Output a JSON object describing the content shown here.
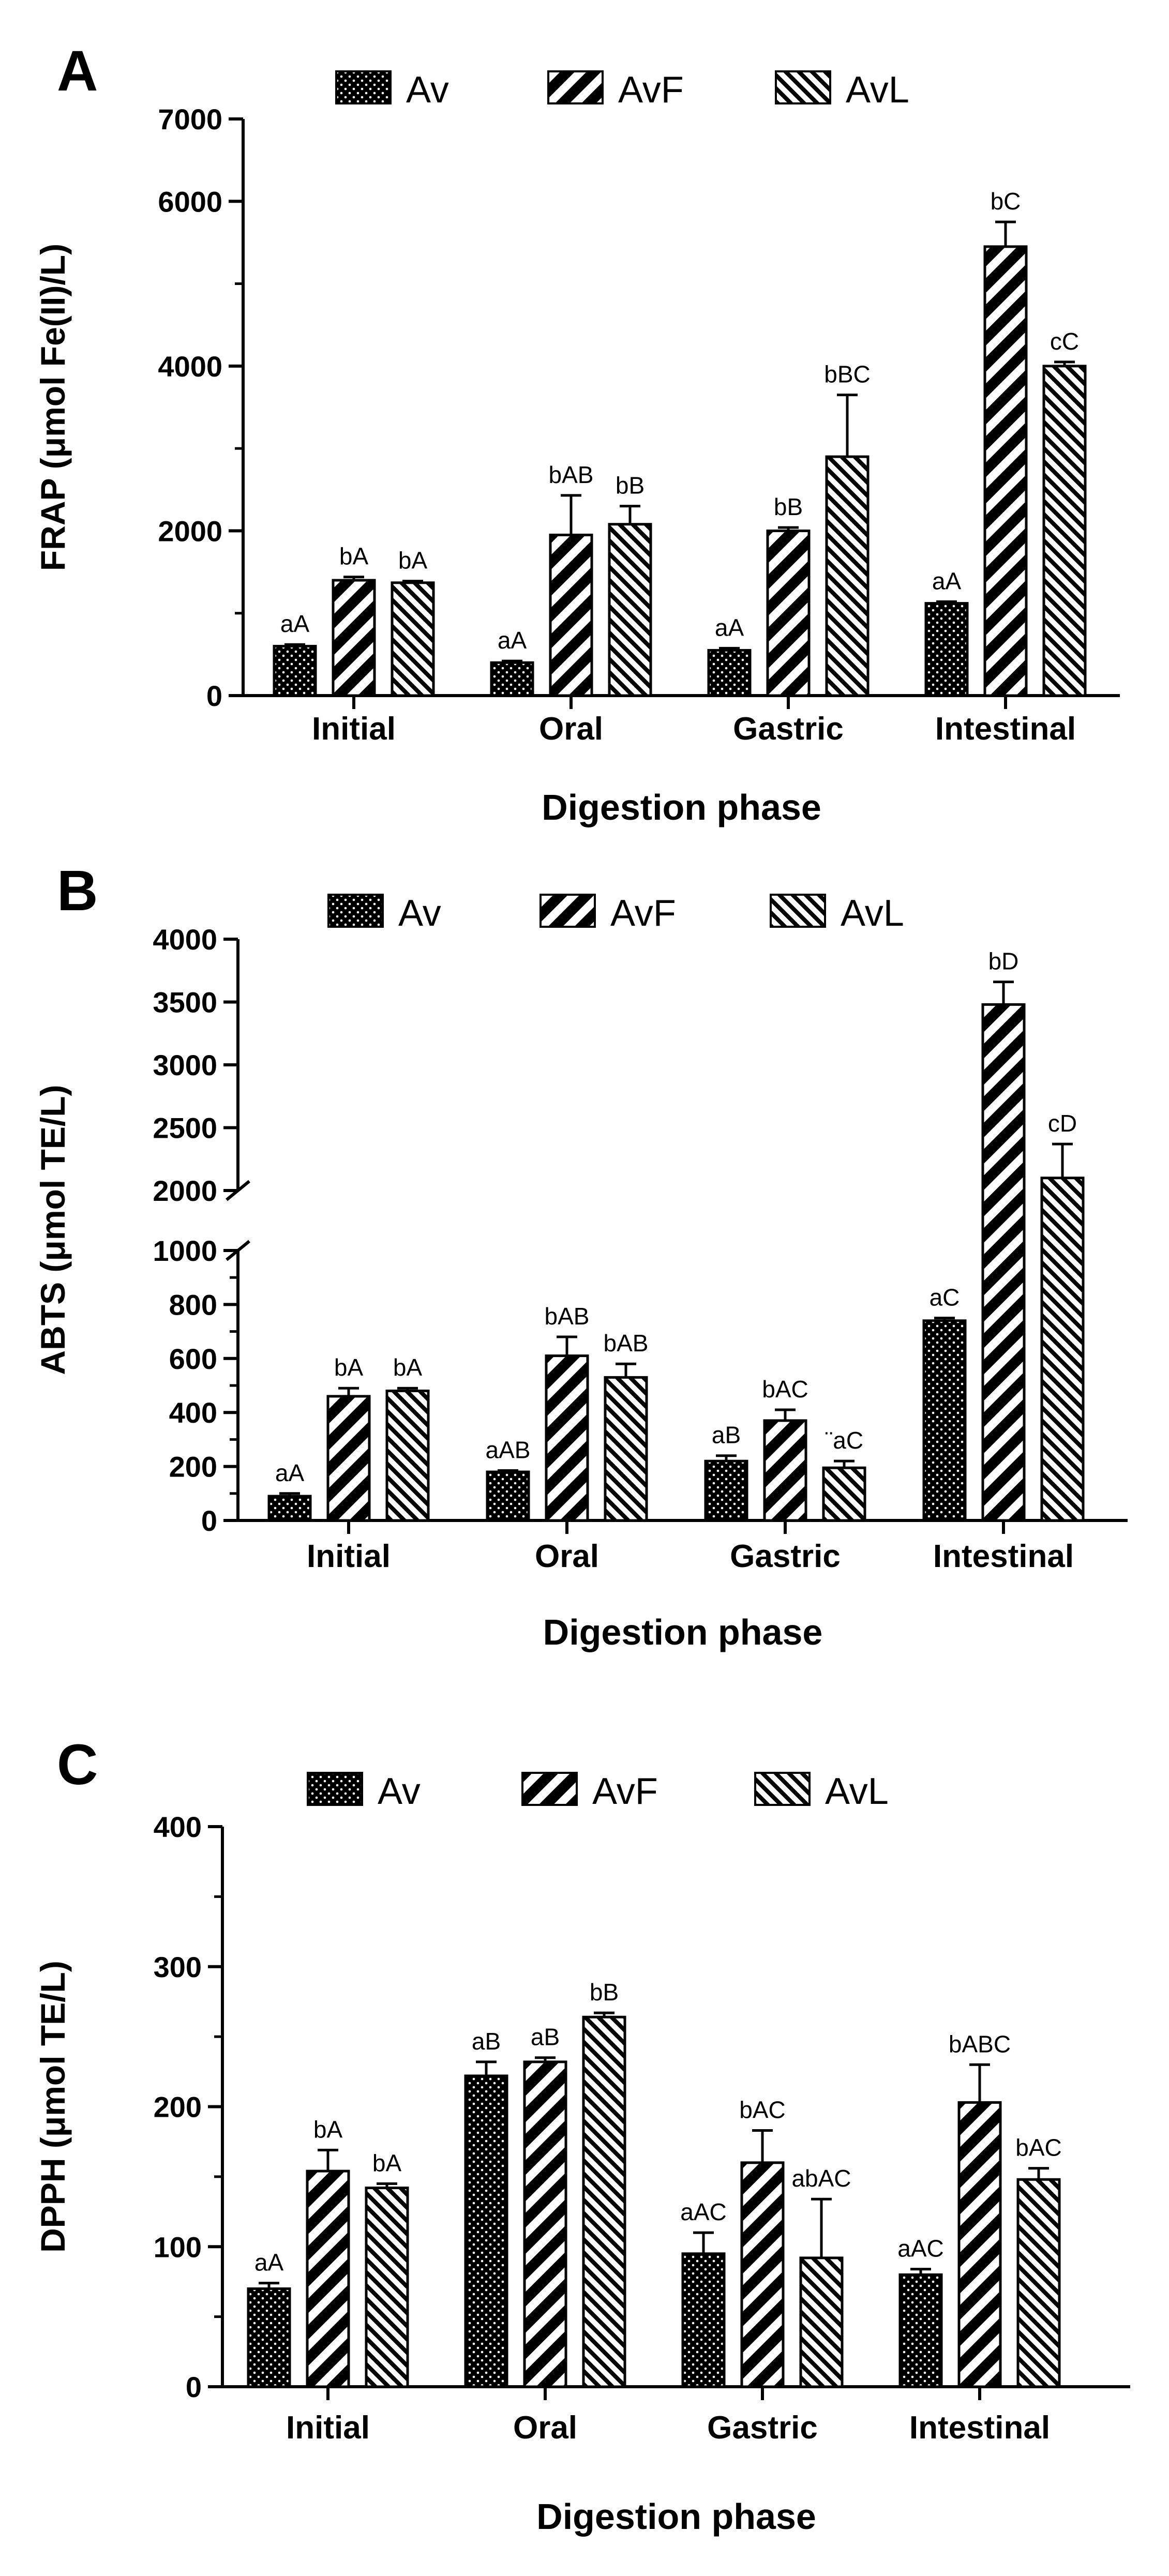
{
  "chart_data": [
    {
      "panel": "A",
      "type": "bar",
      "categories": [
        "Initial",
        "Oral",
        "Gastric",
        "Intestinal"
      ],
      "series": [
        {
          "name": "Av",
          "values": [
            600,
            400,
            550,
            1120
          ],
          "errors": [
            20,
            20,
            25,
            20
          ],
          "labels": [
            "aA",
            "aA",
            "aA",
            "aA"
          ]
        },
        {
          "name": "AvF",
          "values": [
            1400,
            1950,
            2000,
            5450
          ],
          "errors": [
            40,
            480,
            40,
            300
          ],
          "labels": [
            "bA",
            "bAB",
            "bB",
            "bC"
          ]
        },
        {
          "name": "AvL",
          "values": [
            1370,
            2080,
            2900,
            4000
          ],
          "errors": [
            20,
            220,
            750,
            50
          ],
          "labels": [
            "bA",
            "bB",
            "bBC",
            "cC"
          ]
        }
      ],
      "xlabel": "Digestion phase",
      "ylabel": "FRAP (μmol Fe(II)/L)",
      "ylim": [
        0,
        7000
      ],
      "yticks": [
        "0",
        "2000",
        "4000",
        "6000",
        "7000"
      ],
      "broken_axis": false
    },
    {
      "panel": "B",
      "type": "bar",
      "categories": [
        "Initial",
        "Oral",
        "Gastric",
        "Intestinal"
      ],
      "series": [
        {
          "name": "Av",
          "values": [
            90,
            180,
            220,
            740
          ],
          "errors": [
            10,
            5,
            20,
            10
          ],
          "labels": [
            "aA",
            "aAB",
            "aB",
            "aC"
          ]
        },
        {
          "name": "AvF",
          "values": [
            460,
            610,
            370,
            3480
          ],
          "errors": [
            30,
            70,
            40,
            180
          ],
          "labels": [
            "bA",
            "bAB",
            "bAC",
            "bD"
          ]
        },
        {
          "name": "AvL",
          "values": [
            480,
            530,
            195,
            2100
          ],
          "errors": [
            10,
            50,
            25,
            270
          ],
          "labels": [
            "bA",
            "bAB",
            "¨aC",
            "cD"
          ]
        }
      ],
      "xlabel": "Digestion phase",
      "ylabel": "ABTS (μmol TE/L)",
      "ylim": [
        0,
        4000
      ],
      "broken_axis": true,
      "yticks_lower": [
        "0",
        "200",
        "400",
        "600",
        "800",
        "1000"
      ],
      "yticks_upper": [
        "2000",
        "2500",
        "3000",
        "3500",
        "4000"
      ]
    },
    {
      "panel": "C",
      "type": "bar",
      "categories": [
        "Initial",
        "Oral",
        "Gastric",
        "Intestinal"
      ],
      "series": [
        {
          "name": "Av",
          "values": [
            70,
            222,
            95,
            80
          ],
          "errors": [
            4,
            10,
            15,
            4
          ],
          "labels": [
            "aA",
            "aB",
            "aAC",
            "aAC"
          ]
        },
        {
          "name": "AvF",
          "values": [
            154,
            232,
            160,
            203
          ],
          "errors": [
            15,
            3,
            23,
            27
          ],
          "labels": [
            "bA",
            "aB",
            "bAC",
            "bABC"
          ]
        },
        {
          "name": "AvL",
          "values": [
            142,
            264,
            92,
            148
          ],
          "errors": [
            3,
            3,
            42,
            8
          ],
          "labels": [
            "bA",
            "bB",
            "abAC",
            "bAC"
          ]
        }
      ],
      "xlabel": "Digestion phase",
      "ylabel": "DPPH (μmol TE/L)",
      "ylim": [
        0,
        400
      ],
      "yticks": [
        "0",
        "100",
        "200",
        "300",
        "400"
      ],
      "broken_axis": false
    }
  ]
}
